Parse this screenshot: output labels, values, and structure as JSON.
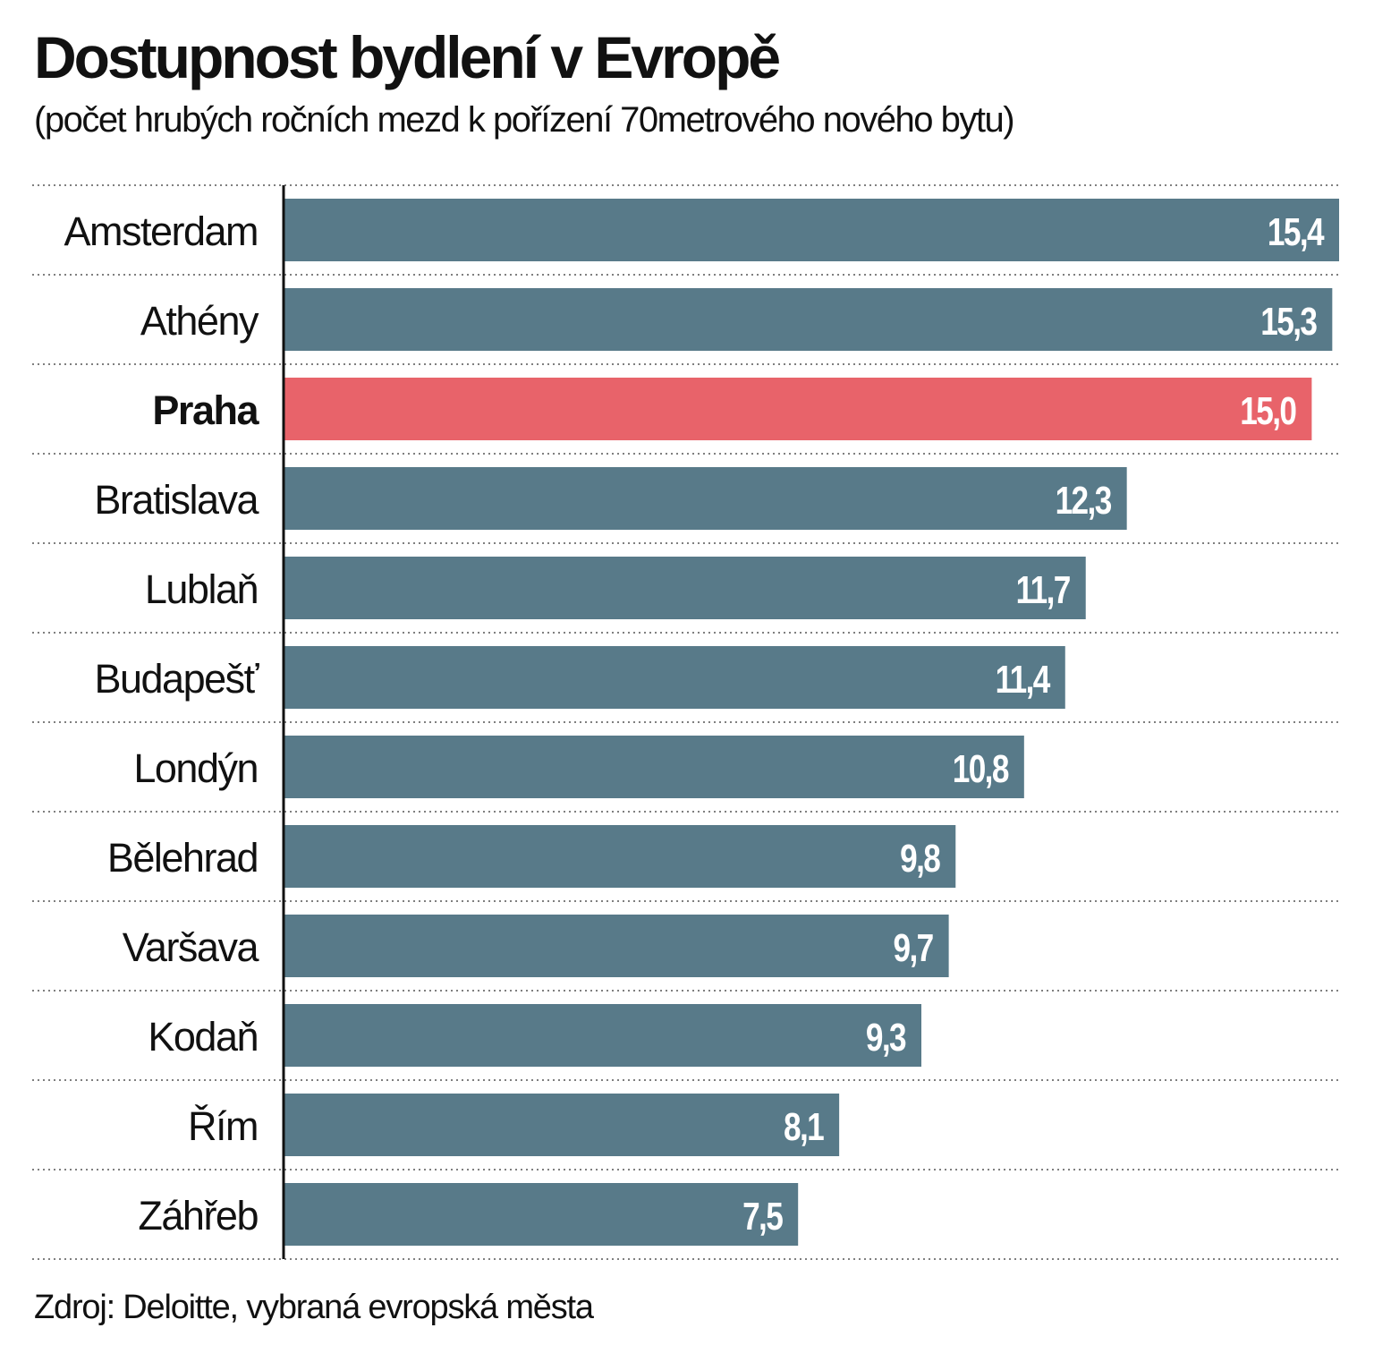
{
  "chart_data": {
    "type": "bar",
    "orientation": "horizontal",
    "title": "Dostupnost bydlení v Evropě",
    "subtitle": "(počet hrubých ročních mezd k pořízení 70metrového nového bytu)",
    "source": "Zdroj: Deloitte, vybraná evropská města",
    "categories": [
      "Amsterdam",
      "Athény",
      "Praha",
      "Bratislava",
      "Lublaň",
      "Budapešť",
      "Londýn",
      "Bělehrad",
      "Varšava",
      "Kodaň",
      "Řím",
      "Záhřeb"
    ],
    "values": [
      15.4,
      15.3,
      15.0,
      12.3,
      11.7,
      11.4,
      10.8,
      9.8,
      9.7,
      9.3,
      8.1,
      7.5
    ],
    "value_labels": [
      "15,4",
      "15,3",
      "15,0",
      "12,3",
      "11,7",
      "11,4",
      "10,8",
      "9,8",
      "9,7",
      "9,3",
      "8,1",
      "7,5"
    ],
    "highlight": "Praha",
    "xlim": [
      0,
      15.4
    ],
    "grid": "dotted row separators",
    "colors": {
      "bar": "#587a89",
      "highlight": "#e8636a",
      "value_text": "#ffffff"
    }
  }
}
